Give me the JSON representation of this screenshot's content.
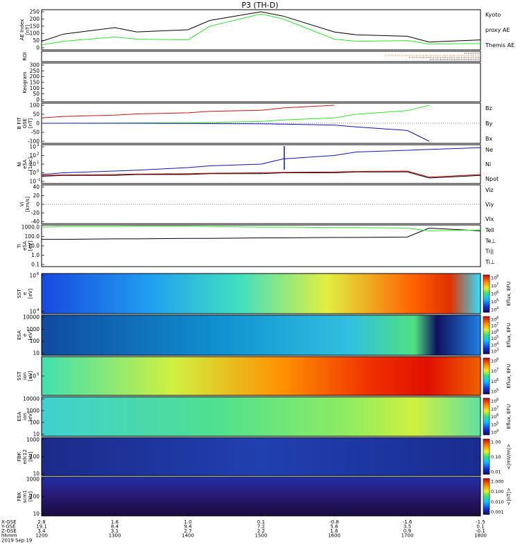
{
  "title": "P3 (TH-D)",
  "colors": {
    "black": "#000000",
    "green": "#2ee62e",
    "red": "#d01010",
    "blue": "#1010c0",
    "orange": "#e08a00"
  },
  "panels": [
    {
      "id": "ae",
      "ylabels": [
        "AE Index",
        "[nT]"
      ],
      "ticks": [
        "250",
        "200",
        "150",
        "100",
        "50",
        "0"
      ],
      "legend": [
        {
          "text": "Kyoto",
          "color": "green"
        },
        {
          "text": "proxy AE",
          "color": "green"
        },
        {
          "text": "Themis AE",
          "color": "black"
        }
      ]
    },
    {
      "id": "roi",
      "ylabels": [
        "ROI"
      ],
      "ticks": [],
      "legend": []
    },
    {
      "id": "keogram",
      "ylabels": [
        "Keogram"
      ],
      "ticks": [
        "300",
        "250",
        "200",
        "150",
        "100",
        "50",
        "0"
      ],
      "legend": []
    },
    {
      "id": "bfit",
      "ylabels": [
        "B FIT",
        "GSE",
        "[nT]"
      ],
      "ticks": [
        "100",
        "50",
        "0",
        "-50",
        "-100"
      ],
      "legend": [
        {
          "text": "Bz",
          "color": "red"
        },
        {
          "text": "By",
          "color": "green"
        },
        {
          "text": "Bx",
          "color": "blue"
        }
      ]
    },
    {
      "id": "ni",
      "ylabels": [
        "Ni",
        "eSA",
        "[1/cc]"
      ],
      "ticks": [
        "10",
        "10",
        "10",
        "10",
        "10"
      ],
      "legend": [
        {
          "text": "Ne",
          "color": "red"
        },
        {
          "text": "Ni",
          "color": "black"
        },
        {
          "text": "Npot",
          "color": "blue"
        }
      ]
    },
    {
      "id": "vi",
      "ylabels": [
        "Vi",
        "[km/s]"
      ],
      "ticks": [
        "40",
        "20",
        "0",
        "-20",
        "-40"
      ],
      "legend": [
        {
          "text": "Viz",
          "color": "red"
        },
        {
          "text": "Viy",
          "color": "green"
        },
        {
          "text": "Vix",
          "color": "blue"
        }
      ]
    },
    {
      "id": "ti",
      "ylabels": [
        "Ti",
        "eSA",
        "[eV]"
      ],
      "ticks": [
        "1000.0",
        "100.0",
        "10.0",
        "1.0",
        "0.1"
      ],
      "legend": [
        {
          "text": "Tell",
          "color": "black"
        },
        {
          "text": "Te⊥",
          "color": "red"
        },
        {
          "text": "Ti||",
          "color": "green"
        },
        {
          "text": "Ti⊥",
          "color": "blue"
        }
      ]
    },
    {
      "id": "sst_e",
      "ylabels": [
        "SST",
        "e",
        "[eV]"
      ],
      "ticks": [
        "10",
        "10"
      ],
      "cb": [
        "10",
        "10",
        "10",
        "10",
        "10"
      ],
      "cblabel": "Eflux, EFU"
    },
    {
      "id": "esa_e",
      "ylabels": [
        "ESA",
        "e",
        "[eV]"
      ],
      "ticks": [
        "10000",
        "1000",
        "100",
        "10"
      ],
      "cb": [
        "10",
        "10",
        "10",
        "10",
        "10",
        "10"
      ],
      "cblabel": "Eflux, EFU"
    },
    {
      "id": "sst_i",
      "ylabels": [
        "SST",
        "ion",
        "[eV]"
      ],
      "ticks": [
        "10"
      ],
      "cb": [
        "10",
        "10",
        "10",
        "10"
      ],
      "cblabel": "Eflux, EFU"
    },
    {
      "id": "esa_i",
      "ylabels": [
        "ESA",
        "ion",
        "[eV]"
      ],
      "ticks": [
        "10000",
        "1000",
        "100",
        "10"
      ],
      "cb": [
        "10",
        "10",
        "10",
        "10",
        "10"
      ],
      "cblabel": "Eflux, EFU"
    },
    {
      "id": "fbk_e",
      "ylabels": [
        "FBK",
        "edc12",
        "[Hz]"
      ],
      "ticks": [
        "1000",
        "100",
        "10"
      ],
      "cb": [
        "1.00",
        "0.10",
        "0.01"
      ],
      "cblabel": "<|mV/m|>"
    },
    {
      "id": "fbk_b",
      "ylabels": [
        "FBK",
        "scm1",
        "[Hz]"
      ],
      "ticks": [
        "1000",
        "100",
        "10"
      ],
      "cb": [
        "1.000",
        "0.100",
        "0.010",
        "0.001"
      ],
      "cblabel": "<|nT|>"
    }
  ],
  "exponents": {
    "ni": [
      "3",
      "2",
      "1",
      "0",
      "-1"
    ],
    "sst_e": [
      "6",
      "4"
    ],
    "sst_i": [
      "5"
    ],
    "sst_e_cb": [
      "8",
      "7",
      "6",
      "5",
      "4"
    ],
    "esa_e_cb": [
      "8",
      "7",
      "6",
      "5",
      "4",
      "3"
    ],
    "sst_i_cb": [
      "8",
      "7",
      "6",
      "5"
    ],
    "esa_i_cb": [
      "8",
      "7",
      "6",
      "5",
      "4"
    ]
  },
  "x_axis": {
    "row_labels": [
      "X-GSE",
      "Y-GSE",
      "Z-GSE",
      "hhmm",
      "2019 Sep 19"
    ],
    "columns": [
      [
        "2.8",
        "19.1",
        "3.4",
        "1200"
      ],
      [
        "1.8",
        "8.4",
        "3.1",
        "1300"
      ],
      [
        "1.0",
        "9.4",
        "2.7",
        "1400"
      ],
      [
        "0.1",
        "7.2",
        "2.2",
        "1500"
      ],
      [
        "-0.8",
        "5.6",
        "1.6",
        "1600"
      ],
      [
        "-1.6",
        "3.5",
        "0.9",
        "1700"
      ],
      [
        "-1.5",
        "0.1",
        "-0.1",
        "1800"
      ]
    ]
  },
  "chart_data": {
    "type": "line",
    "title": "P3 (TH-D)",
    "x": [
      1200,
      1230,
      1300,
      1330,
      1400,
      1430,
      1500,
      1530,
      1600,
      1630,
      1700,
      1730,
      1800
    ],
    "xlim": [
      1200,
      1800
    ],
    "xlabel": "hhmm",
    "series": [
      {
        "panel": "ae",
        "name": "Themis AE",
        "color": "black",
        "ylim": [
          0,
          250
        ],
        "values": [
          45,
          95,
          140,
          110,
          125,
          190,
          250,
          220,
          110,
          90,
          80,
          40,
          55
        ]
      },
      {
        "panel": "ae",
        "name": "Kyoto proxy AE",
        "color": "green",
        "ylim": [
          0,
          250
        ],
        "values": [
          20,
          45,
          75,
          60,
          55,
          150,
          235,
          200,
          60,
          45,
          50,
          25,
          30
        ]
      },
      {
        "panel": "bfit",
        "name": "Bz",
        "color": "red",
        "ylim": [
          -100,
          100
        ],
        "values": [
          30,
          38,
          45,
          52,
          58,
          66,
          72,
          85,
          100,
          null,
          null,
          null,
          null
        ]
      },
      {
        "panel": "bfit",
        "name": "By",
        "color": "green",
        "ylim": [
          -100,
          100
        ],
        "values": [
          0,
          0,
          1,
          2,
          3,
          5,
          10,
          18,
          30,
          50,
          70,
          100,
          null
        ]
      },
      {
        "panel": "bfit",
        "name": "Bx",
        "color": "blue",
        "ylim": [
          -100,
          100
        ],
        "values": [
          0,
          0,
          0,
          0,
          -1,
          -2,
          -3,
          -5,
          -10,
          -20,
          -40,
          -100,
          null
        ]
      },
      {
        "panel": "ni",
        "name": "Npot",
        "color": "blue",
        "ylim": [
          -1,
          3
        ],
        "values": [
          -0.2,
          0.0,
          0.2,
          0.3,
          0.6,
          0.8,
          1.0,
          1.6,
          2.0,
          2.4,
          2.6,
          2.7,
          2.9
        ]
      },
      {
        "panel": "ni",
        "name": "Ni",
        "color": "black",
        "ylim": [
          -1,
          3
        ],
        "values": [
          -0.4,
          -0.3,
          -0.3,
          -0.2,
          -0.2,
          -0.1,
          -0.1,
          0.0,
          0.0,
          0.1,
          0.1,
          -0.6,
          -0.3
        ]
      },
      {
        "panel": "ni",
        "name": "Ne",
        "color": "red",
        "ylim": [
          -1,
          3
        ],
        "values": [
          -0.3,
          -0.25,
          -0.2,
          -0.15,
          -0.1,
          -0.05,
          0.0,
          0.05,
          0.1,
          0.15,
          0.2,
          -0.5,
          -0.2
        ]
      },
      {
        "panel": "ti",
        "name": "Tell",
        "color": "black",
        "ylim": [
          -1,
          3
        ],
        "values": [
          1.7,
          1.7,
          1.75,
          1.75,
          1.8,
          1.8,
          1.85,
          1.85,
          1.9,
          1.9,
          1.95,
          2.9,
          2.6
        ]
      },
      {
        "panel": "ti",
        "name": "Ti||",
        "color": "green",
        "ylim": [
          -1,
          3
        ],
        "values": [
          3.0,
          3.05,
          3.05,
          3.1,
          3.1,
          3.05,
          3.0,
          3.0,
          2.95,
          2.95,
          2.9,
          2.6,
          2.7
        ]
      }
    ]
  }
}
